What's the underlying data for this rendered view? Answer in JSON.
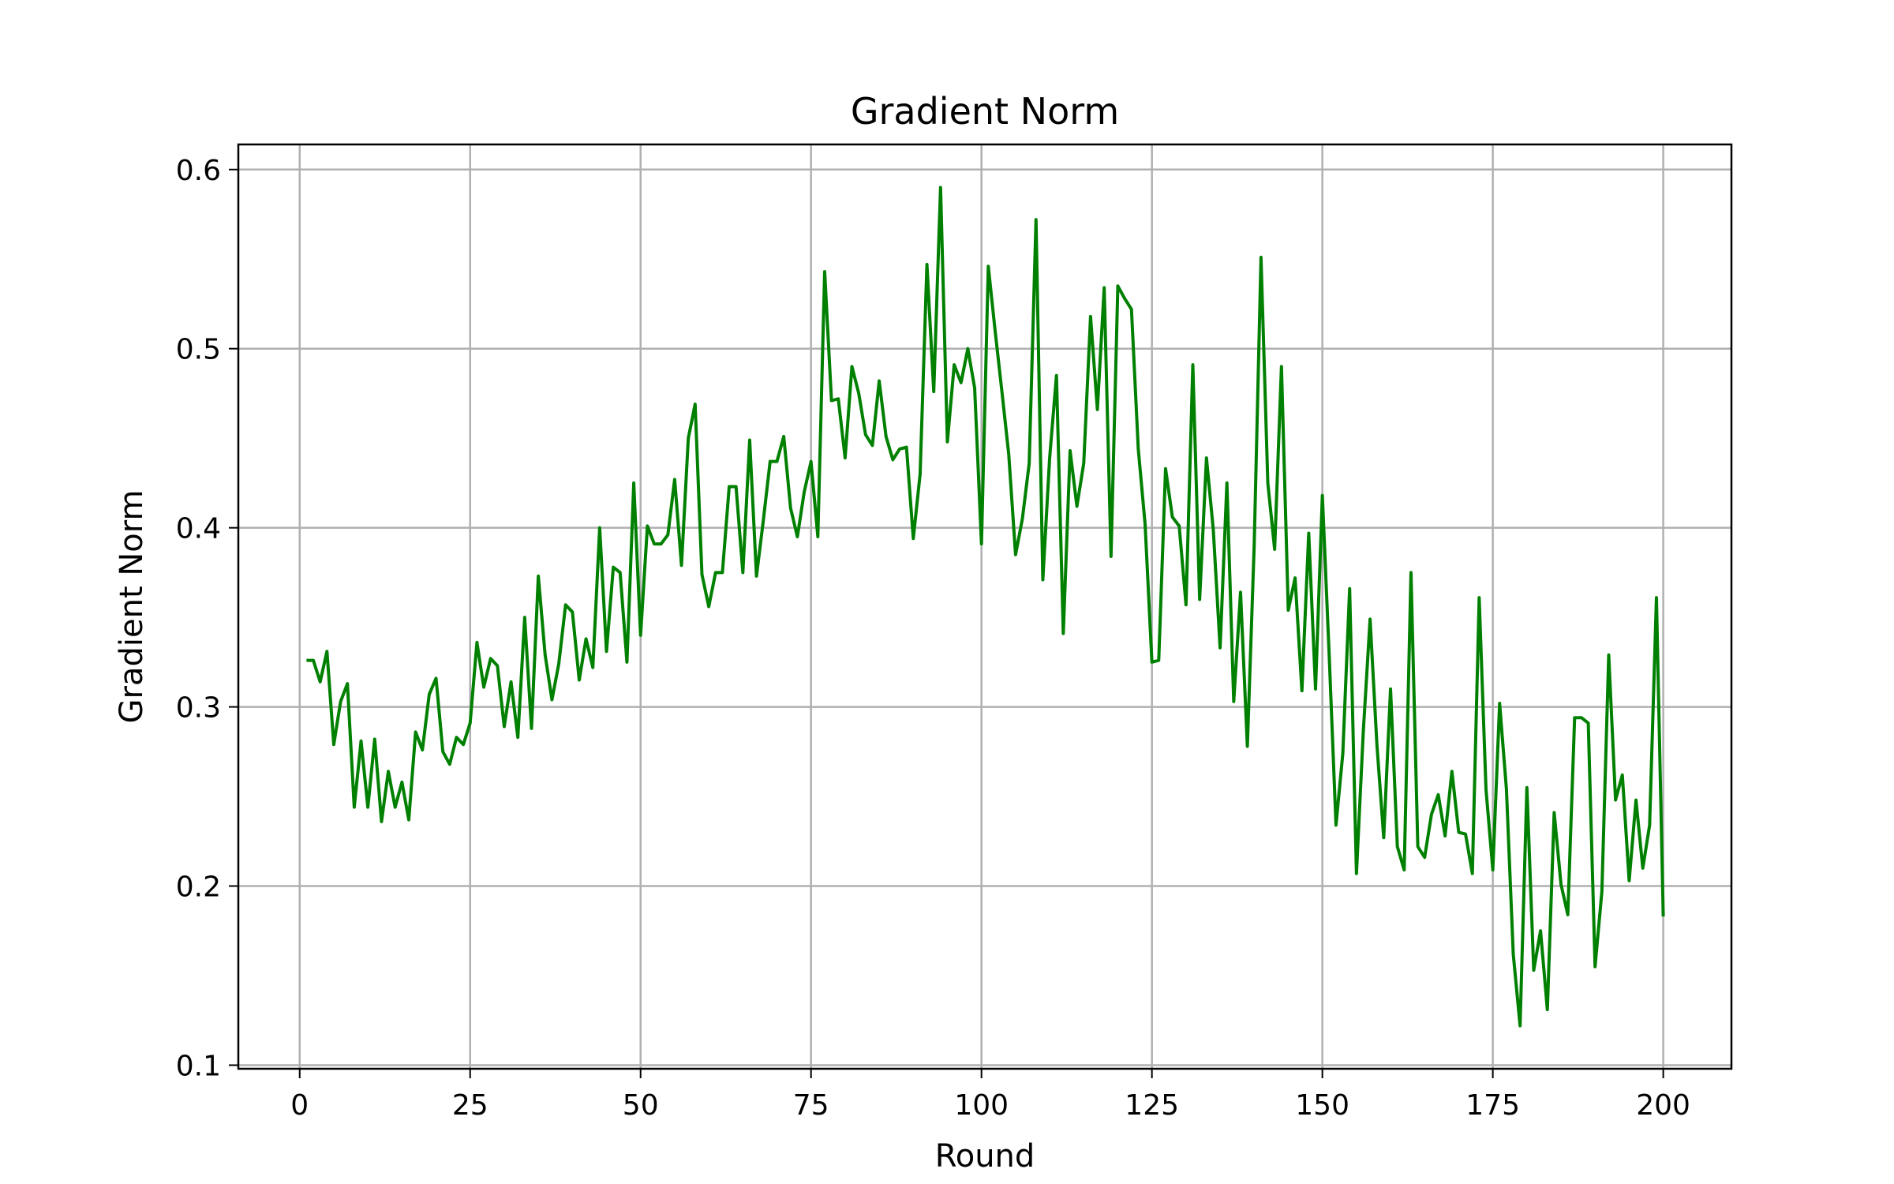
{
  "chart_data": {
    "type": "line",
    "title": "Gradient Norm",
    "xlabel": "Round",
    "ylabel": "Gradient Norm",
    "xlim": [
      -9,
      210
    ],
    "ylim": [
      0.098,
      0.614
    ],
    "xticks": [
      0,
      25,
      50,
      75,
      100,
      125,
      150,
      175,
      200
    ],
    "yticks": [
      0.1,
      0.2,
      0.3,
      0.4,
      0.5,
      0.6
    ],
    "xtick_labels": [
      "0",
      "25",
      "50",
      "75",
      "100",
      "125",
      "150",
      "175",
      "200"
    ],
    "ytick_labels": [
      "0.1",
      "0.2",
      "0.3",
      "0.4",
      "0.5",
      "0.6"
    ],
    "grid": true,
    "line_color": "#008000",
    "series": [
      {
        "x_start": 1,
        "x_step": 1,
        "values": [
          0.326,
          0.326,
          0.314,
          0.331,
          0.279,
          0.303,
          0.313,
          0.244,
          0.281,
          0.244,
          0.282,
          0.236,
          0.264,
          0.244,
          0.258,
          0.237,
          0.286,
          0.276,
          0.307,
          0.316,
          0.275,
          0.268,
          0.283,
          0.279,
          0.291,
          0.336,
          0.311,
          0.327,
          0.323,
          0.289,
          0.314,
          0.283,
          0.35,
          0.288,
          0.373,
          0.329,
          0.304,
          0.324,
          0.357,
          0.353,
          0.315,
          0.338,
          0.322,
          0.4,
          0.331,
          0.378,
          0.375,
          0.325,
          0.425,
          0.34,
          0.401,
          0.391,
          0.391,
          0.396,
          0.427,
          0.379,
          0.45,
          0.469,
          0.374,
          0.356,
          0.375,
          0.375,
          0.423,
          0.423,
          0.375,
          0.449,
          0.373,
          0.404,
          0.437,
          0.437,
          0.451,
          0.411,
          0.395,
          0.42,
          0.437,
          0.395,
          0.543,
          0.471,
          0.472,
          0.439,
          0.49,
          0.475,
          0.452,
          0.446,
          0.482,
          0.451,
          0.438,
          0.444,
          0.445,
          0.394,
          0.43,
          0.547,
          0.476,
          0.59,
          0.448,
          0.491,
          0.481,
          0.5,
          0.478,
          0.391,
          0.546,
          0.51,
          0.476,
          0.441,
          0.385,
          0.405,
          0.436,
          0.572,
          0.371,
          0.439,
          0.485,
          0.341,
          0.443,
          0.412,
          0.436,
          0.518,
          0.466,
          0.534,
          0.384,
          0.535,
          0.528,
          0.522,
          0.444,
          0.402,
          0.325,
          0.326,
          0.433,
          0.406,
          0.401,
          0.357,
          0.491,
          0.36,
          0.439,
          0.399,
          0.333,
          0.425,
          0.303,
          0.364,
          0.278,
          0.39,
          0.551,
          0.425,
          0.388,
          0.49,
          0.354,
          0.372,
          0.309,
          0.397,
          0.31,
          0.418,
          0.329,
          0.234,
          0.274,
          0.366,
          0.207,
          0.286,
          0.349,
          0.279,
          0.227,
          0.31,
          0.222,
          0.209,
          0.375,
          0.222,
          0.216,
          0.24,
          0.251,
          0.228,
          0.264,
          0.23,
          0.229,
          0.207,
          0.361,
          0.254,
          0.209,
          0.302,
          0.254,
          0.162,
          0.122,
          0.255,
          0.153,
          0.175,
          0.131,
          0.241,
          0.201,
          0.184,
          0.294,
          0.294,
          0.291,
          0.155,
          0.197,
          0.329,
          0.248,
          0.262,
          0.203,
          0.248,
          0.21,
          0.234,
          0.361,
          0.183
        ]
      }
    ]
  }
}
